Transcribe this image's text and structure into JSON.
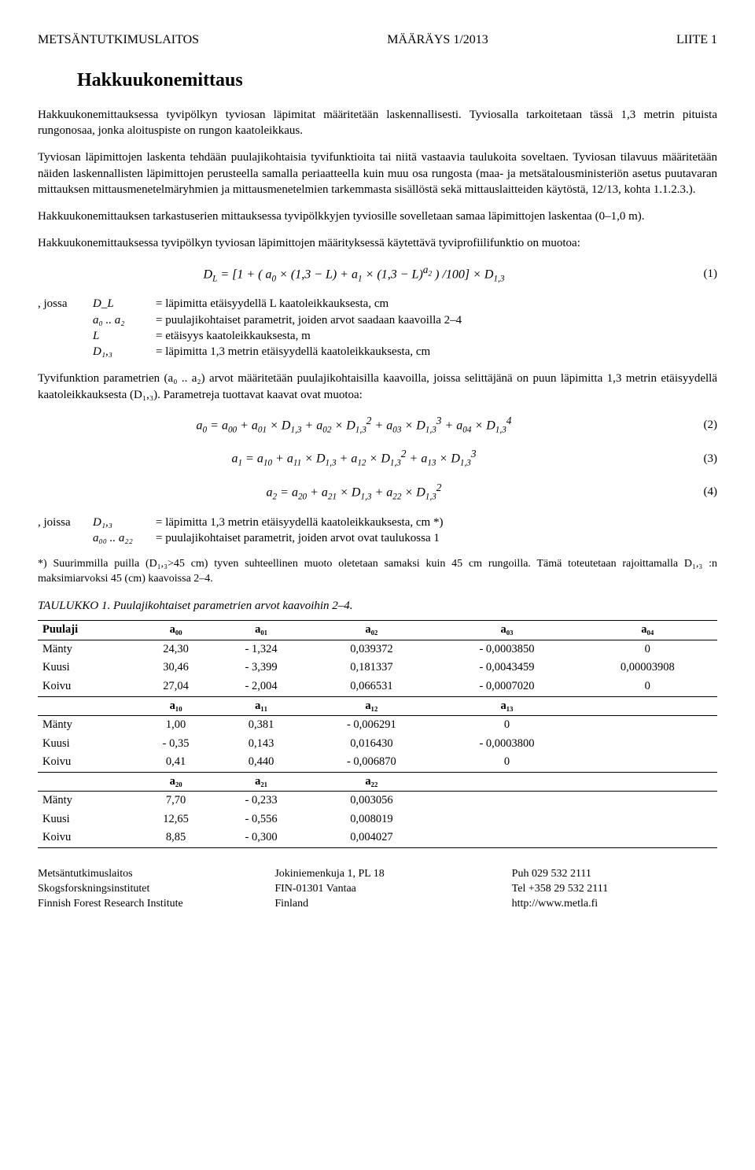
{
  "header": {
    "left": "METSÄNTUTKIMUSLAITOS",
    "center": "MÄÄRÄYS 1/2013",
    "right": "LIITE 1"
  },
  "title": "Hakkuukonemittaus",
  "paragraphs": {
    "p1": "Hakkuukonemittauksessa tyvipölkyn tyviosan läpimitat määritetään laskennallisesti. Tyviosalla tarkoitetaan tässä 1,3 metrin pituista rungonosaa, jonka aloituspiste on rungon kaatoleikkaus.",
    "p2": "Tyviosan läpimittojen laskenta tehdään puulajikohtaisia tyvifunktioita tai niitä vastaavia taulukoita soveltaen. Tyviosan tilavuus määritetään näiden laskennallisten läpimittojen perusteella samalla periaatteella kuin muu osa rungosta (maa- ja metsätalousministeriön asetus puutavaran mittauksen mittausmenetelmäryhmien ja mittausmenetelmien tarkemmasta sisällöstä sekä mittauslaitteiden käytöstä, 12/13, kohta 1.1.2.3.).",
    "p3": "Hakkuukonemittauksen tarkastuserien mittauksessa tyvipölkkyjen tyviosille sovelletaan samaa läpimittojen laskentaa (0–1,0 m).",
    "p4": "Hakkuukonemittauksessa tyvipölkyn tyviosan läpimittojen määrityksessä käytettävä tyviprofiilifunktio on muotoa:",
    "p5": "Tyvifunktion parametrien (a₀ .. a₂) arvot määritetään puulajikohtaisilla kaavoilla, joissa selittäjänä on puun läpimitta 1,3 metrin etäisyydellä kaatoleikkauksesta (D₁,₃). Parametreja tuottavat kaavat ovat muotoa:"
  },
  "formulas": {
    "f1": "D_L = [1 + ( a₀ × (1,3 − L) + a₁ × (1,3 − L)^{a₂} ) / 100] × D_{1,3}",
    "n1": "(1)",
    "f2": "a₀ = a₀₀ + a₀₁ × D_{1,3} + a₀₂ × D_{1,3}² + a₀₃ × D_{1,3}³ + a₀₄ × D_{1,3}⁴",
    "n2": "(2)",
    "f3": "a₁ = a₁₀ + a₁₁ × D_{1,3} + a₁₂ × D_{1,3}² + a₁₃ × D_{1,3}³",
    "n3": "(3)",
    "f4": "a₂ = a₂₀ + a₂₁ × D_{1,3} + a₂₂ × D_{1,3}²",
    "n4": "(4)"
  },
  "defs1": {
    "lead": ", jossa",
    "rows": [
      {
        "sym": "D_L",
        "txt": "= läpimitta etäisyydellä L kaatoleikkauksesta, cm"
      },
      {
        "sym": "a₀ .. a₂",
        "txt": "= puulajikohtaiset parametrit, joiden arvot saadaan kaavoilla 2–4"
      },
      {
        "sym": "L",
        "txt": "= etäisyys kaatoleikkauksesta, m"
      },
      {
        "sym": "D₁,₃",
        "txt": "= läpimitta 1,3 metrin etäisyydellä kaatoleikkauksesta, cm"
      }
    ]
  },
  "defs2": {
    "lead": ", joissa",
    "rows": [
      {
        "sym": "D₁,₃",
        "txt": "= läpimitta 1,3 metrin etäisyydellä kaatoleikkauksesta, cm *)"
      },
      {
        "sym": "a₀₀ .. a₂₂",
        "txt": "= puulajikohtaiset parametrit, joiden arvot ovat taulukossa 1"
      }
    ]
  },
  "footnote": "*) Suurimmilla puilla (D₁,₃>45 cm) tyven suhteellinen muoto oletetaan samaksi kuin 45 cm rungoilla. Tämä toteutetaan rajoittamalla D₁,₃ :n maksimiarvoksi 45 (cm) kaavoissa 2–4.",
  "table": {
    "caption": "TAULUKKO 1. Puulajikohtaiset parametrien arvot kaavoihin 2–4.",
    "head1": [
      "Puulaji",
      "a₀₀",
      "a₀₁",
      "a₀₂",
      "a₀₃",
      "a₀₄"
    ],
    "block1": [
      [
        "Mänty",
        "24,30",
        "- 1,324",
        "0,039372",
        "- 0,0003850",
        "0"
      ],
      [
        "Kuusi",
        "30,46",
        "- 3,399",
        "0,181337",
        "- 0,0043459",
        "0,00003908"
      ],
      [
        "Koivu",
        "27,04",
        "- 2,004",
        "0,066531",
        "- 0,0007020",
        "0"
      ]
    ],
    "head2": [
      "",
      "a₁₀",
      "a₁₁",
      "a₁₂",
      "a₁₃",
      ""
    ],
    "block2": [
      [
        "Mänty",
        "1,00",
        "0,381",
        "- 0,006291",
        "0",
        ""
      ],
      [
        "Kuusi",
        "- 0,35",
        "0,143",
        "0,016430",
        "- 0,0003800",
        ""
      ],
      [
        "Koivu",
        "0,41",
        "0,440",
        "- 0,006870",
        "0",
        ""
      ]
    ],
    "head3": [
      "",
      "a₂₀",
      "a₂₁",
      "a₂₂",
      "",
      ""
    ],
    "block3": [
      [
        "Mänty",
        "7,70",
        "- 0,233",
        "0,003056",
        "",
        ""
      ],
      [
        "Kuusi",
        "12,65",
        "- 0,556",
        "0,008019",
        "",
        ""
      ],
      [
        "Koivu",
        "8,85",
        "- 0,300",
        "0,004027",
        "",
        ""
      ]
    ]
  },
  "footer": {
    "col1": [
      "Metsäntutkimuslaitos",
      "Skogsforskningsinstitutet",
      "Finnish Forest Research Institute"
    ],
    "col2": [
      "Jokiniemenkuja 1, PL 18",
      "FIN-01301 Vantaa",
      "Finland"
    ],
    "col3": [
      "Puh 029 532 2111",
      "Tel +358 29 532 2111",
      "http://www.metla.fi"
    ]
  }
}
